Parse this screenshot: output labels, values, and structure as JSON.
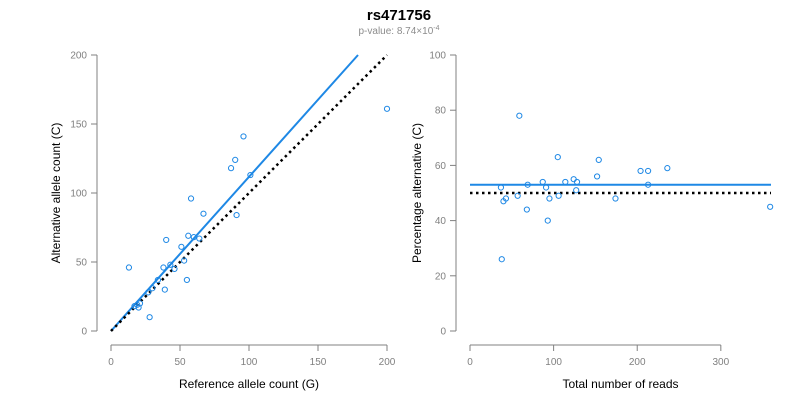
{
  "figure": {
    "title": "rs471756",
    "subtitle_prefix": "p-value: 8.74×10",
    "subtitle_exponent": "-4"
  },
  "colors": {
    "accent": "#1e88e5",
    "reference_line": "#000000",
    "axis": "#808080"
  },
  "chart_data": [
    {
      "type": "scatter",
      "xlabel": "Reference allele count (G)",
      "ylabel": "Alternative allele count (C)",
      "xlim": [
        0,
        200
      ],
      "ylim": [
        0,
        200
      ],
      "x_ticks": [
        "0",
        "50",
        "100",
        "150",
        "200"
      ],
      "y_ticks": [
        "0",
        "50",
        "100",
        "150",
        "200"
      ],
      "grid": false,
      "points": [
        {
          "x": 13,
          "y": 46
        },
        {
          "x": 17,
          "y": 18
        },
        {
          "x": 19,
          "y": 19
        },
        {
          "x": 20,
          "y": 17
        },
        {
          "x": 21,
          "y": 20
        },
        {
          "x": 27,
          "y": 28
        },
        {
          "x": 28,
          "y": 10
        },
        {
          "x": 30,
          "y": 31
        },
        {
          "x": 34,
          "y": 37
        },
        {
          "x": 38,
          "y": 46
        },
        {
          "x": 39,
          "y": 30
        },
        {
          "x": 40,
          "y": 66
        },
        {
          "x": 43,
          "y": 48
        },
        {
          "x": 46,
          "y": 45
        },
        {
          "x": 51,
          "y": 61
        },
        {
          "x": 53,
          "y": 51
        },
        {
          "x": 55,
          "y": 37
        },
        {
          "x": 56,
          "y": 69
        },
        {
          "x": 58,
          "y": 96
        },
        {
          "x": 60,
          "y": 68
        },
        {
          "x": 64,
          "y": 67
        },
        {
          "x": 67,
          "y": 85
        },
        {
          "x": 87,
          "y": 118
        },
        {
          "x": 90,
          "y": 124
        },
        {
          "x": 91,
          "y": 84
        },
        {
          "x": 96,
          "y": 141
        },
        {
          "x": 101,
          "y": 113
        },
        {
          "x": 200,
          "y": 161
        }
      ],
      "lines": [
        {
          "style": "solid",
          "color": "#1e88e5",
          "x": [
            0,
            179
          ],
          "y": [
            0,
            200
          ]
        },
        {
          "style": "dotted",
          "color": "#000000",
          "x": [
            0,
            200
          ],
          "y": [
            0,
            200
          ]
        }
      ]
    },
    {
      "type": "scatter",
      "xlabel": "Total number of reads",
      "ylabel": "Percentage alternative (C)",
      "xlim": [
        0,
        360
      ],
      "ylim": [
        0,
        100
      ],
      "x_ticks": [
        "0",
        "100",
        "200",
        "300"
      ],
      "y_ticks": [
        "0",
        "20",
        "40",
        "60",
        "80",
        "100"
      ],
      "grid": false,
      "points": [
        {
          "x": 37,
          "y": 52
        },
        {
          "x": 38,
          "y": 26
        },
        {
          "x": 40,
          "y": 47
        },
        {
          "x": 43,
          "y": 48
        },
        {
          "x": 57,
          "y": 49
        },
        {
          "x": 59,
          "y": 78
        },
        {
          "x": 68,
          "y": 44
        },
        {
          "x": 69,
          "y": 53
        },
        {
          "x": 87,
          "y": 54
        },
        {
          "x": 91,
          "y": 52
        },
        {
          "x": 93,
          "y": 40
        },
        {
          "x": 95,
          "y": 48
        },
        {
          "x": 105,
          "y": 63
        },
        {
          "x": 106,
          "y": 49
        },
        {
          "x": 114,
          "y": 54
        },
        {
          "x": 124,
          "y": 55
        },
        {
          "x": 127,
          "y": 51
        },
        {
          "x": 128,
          "y": 54
        },
        {
          "x": 152,
          "y": 56
        },
        {
          "x": 154,
          "y": 62
        },
        {
          "x": 174,
          "y": 48
        },
        {
          "x": 204,
          "y": 58
        },
        {
          "x": 213,
          "y": 53
        },
        {
          "x": 213,
          "y": 58
        },
        {
          "x": 236,
          "y": 59
        },
        {
          "x": 359,
          "y": 45
        }
      ],
      "lines": [
        {
          "style": "solid",
          "color": "#1e88e5",
          "x": [
            0,
            360
          ],
          "y": [
            53,
            53
          ]
        },
        {
          "style": "dotted",
          "color": "#000000",
          "x": [
            0,
            360
          ],
          "y": [
            50,
            50
          ]
        }
      ]
    }
  ]
}
